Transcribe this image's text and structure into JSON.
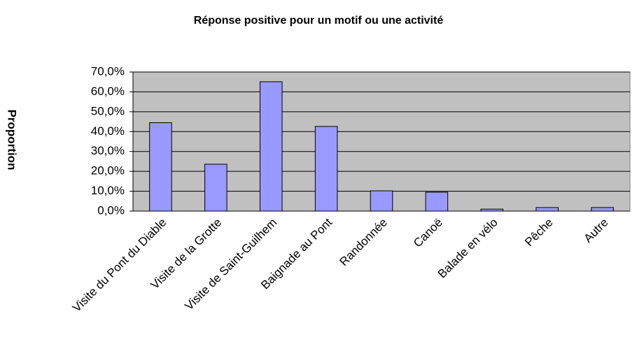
{
  "chart_data": {
    "type": "bar",
    "title": "Réponse positive pour un motif ou une activité",
    "y_label": "Proportion",
    "categories": [
      "Visite du Pont du Diable",
      "Visite de la Grotte",
      "Visite de Saint-Guilhem",
      "Baignade au Pont",
      "Randonnée",
      "Canoë",
      "Balade en vélo",
      "Pêche",
      "Autre"
    ],
    "values": [
      44.5,
      23.6,
      65.1,
      42.6,
      10.2,
      9.5,
      1.0,
      1.8,
      1.8
    ],
    "color": "#9999ff",
    "ylim": [
      0,
      70
    ],
    "yticks": [
      {
        "value": 0,
        "label": "0,0%"
      },
      {
        "value": 10,
        "label": "10,0%"
      },
      {
        "value": 20,
        "label": "20,0%"
      },
      {
        "value": 30,
        "label": "30,0%"
      },
      {
        "value": 40,
        "label": "40,0%"
      },
      {
        "value": 50,
        "label": "50,0%"
      },
      {
        "value": 60,
        "label": "60,0%"
      },
      {
        "value": 70,
        "label": "70,0%"
      }
    ],
    "grid": true
  }
}
